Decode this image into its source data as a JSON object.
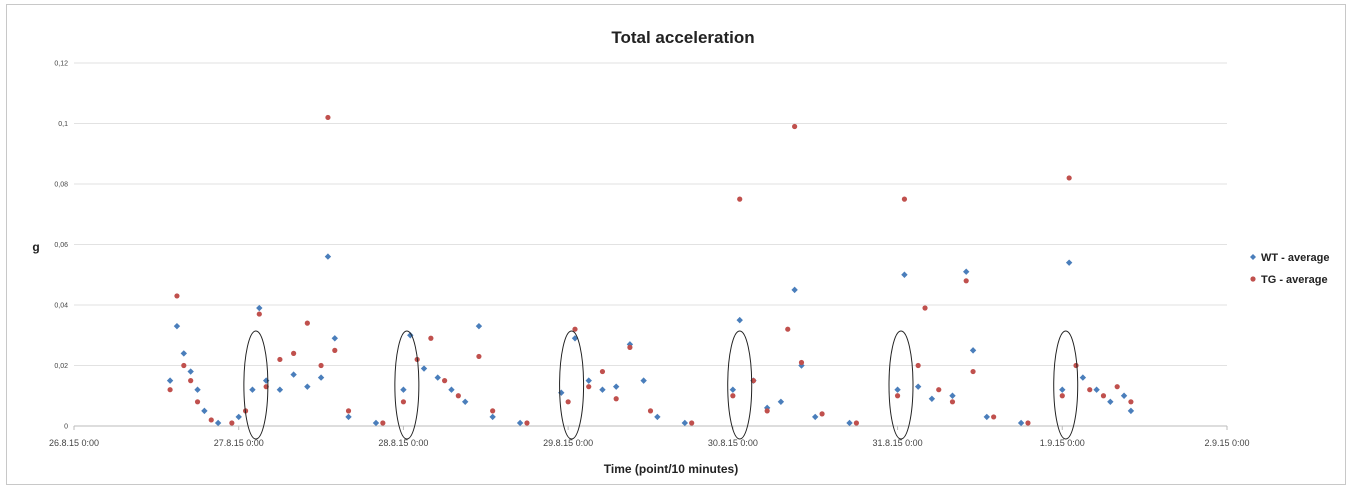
{
  "chart_data": {
    "type": "scatter",
    "title": "Total acceleration",
    "xlabel": "Time (point/10 minutes)",
    "ylabel": "g",
    "ylim": [
      0,
      0.12
    ],
    "y_ticks": [
      "0",
      "0,02",
      "0,04",
      "0,06",
      "0,08",
      "0,1",
      "0,12"
    ],
    "xlim": [
      "26.8.15 0:00",
      "2.9.15 0:00"
    ],
    "x_ticks": [
      "26.8.15 0:00",
      "27.8.15 0:00",
      "28.8.15 0:00",
      "29.8.15 0:00",
      "30.8.15 0:00",
      "31.8.15 0:00",
      "1.9.15 0:00",
      "2.9.15 0:00"
    ],
    "grid": "horizontal",
    "legend_position": "right",
    "series": [
      {
        "name": "WT - average",
        "color": "#4a7ebb",
        "marker": "diamond",
        "points": [
          [
            "26.8.15 14:00",
            0.015
          ],
          [
            "26.8.15 15:00",
            0.033
          ],
          [
            "26.8.15 16:00",
            0.024
          ],
          [
            "26.8.15 17:00",
            0.018
          ],
          [
            "26.8.15 18:00",
            0.012
          ],
          [
            "26.8.15 19:00",
            0.005
          ],
          [
            "26.8.15 21:00",
            0.001
          ],
          [
            "27.8.15 0:00",
            0.003
          ],
          [
            "27.8.15 2:00",
            0.012
          ],
          [
            "27.8.15 3:00",
            0.039
          ],
          [
            "27.8.15 4:00",
            0.015
          ],
          [
            "27.8.15 6:00",
            0.012
          ],
          [
            "27.8.15 8:00",
            0.017
          ],
          [
            "27.8.15 10:00",
            0.013
          ],
          [
            "27.8.15 12:00",
            0.016
          ],
          [
            "27.8.15 13:00",
            0.056
          ],
          [
            "27.8.15 14:00",
            0.029
          ],
          [
            "27.8.15 16:00",
            0.003
          ],
          [
            "27.8.15 20:00",
            0.001
          ],
          [
            "28.8.15 0:00",
            0.012
          ],
          [
            "28.8.15 1:00",
            0.03
          ],
          [
            "28.8.15 3:00",
            0.019
          ],
          [
            "28.8.15 5:00",
            0.016
          ],
          [
            "28.8.15 7:00",
            0.012
          ],
          [
            "28.8.15 9:00",
            0.008
          ],
          [
            "28.8.15 11:00",
            0.033
          ],
          [
            "28.8.15 13:00",
            0.003
          ],
          [
            "28.8.15 17:00",
            0.001
          ],
          [
            "28.8.15 23:00",
            0.011
          ],
          [
            "29.8.15 1:00",
            0.029
          ],
          [
            "29.8.15 3:00",
            0.015
          ],
          [
            "29.8.15 5:00",
            0.012
          ],
          [
            "29.8.15 7:00",
            0.013
          ],
          [
            "29.8.15 9:00",
            0.027
          ],
          [
            "29.8.15 11:00",
            0.015
          ],
          [
            "29.8.15 13:00",
            0.003
          ],
          [
            "29.8.15 17:00",
            0.001
          ],
          [
            "30.8.15 0:00",
            0.012
          ],
          [
            "30.8.15 1:00",
            0.035
          ],
          [
            "30.8.15 3:00",
            0.015
          ],
          [
            "30.8.15 5:00",
            0.006
          ],
          [
            "30.8.15 7:00",
            0.008
          ],
          [
            "30.8.15 9:00",
            0.045
          ],
          [
            "30.8.15 10:00",
            0.02
          ],
          [
            "30.8.15 12:00",
            0.003
          ],
          [
            "30.8.15 17:00",
            0.001
          ],
          [
            "31.8.15 0:00",
            0.012
          ],
          [
            "31.8.15 1:00",
            0.05
          ],
          [
            "31.8.15 3:00",
            0.013
          ],
          [
            "31.8.15 5:00",
            0.009
          ],
          [
            "31.8.15 8:00",
            0.01
          ],
          [
            "31.8.15 10:00",
            0.051
          ],
          [
            "31.8.15 11:00",
            0.025
          ],
          [
            "31.8.15 13:00",
            0.003
          ],
          [
            "31.8.15 18:00",
            0.001
          ],
          [
            "1.9.15 0:00",
            0.012
          ],
          [
            "1.9.15 1:00",
            0.054
          ],
          [
            "1.9.15 3:00",
            0.016
          ],
          [
            "1.9.15 5:00",
            0.012
          ],
          [
            "1.9.15 7:00",
            0.008
          ],
          [
            "1.9.15 9:00",
            0.01
          ],
          [
            "1.9.15 10:00",
            0.005
          ]
        ]
      },
      {
        "name": "TG - average",
        "color": "#c0504d",
        "marker": "circle",
        "points": [
          [
            "26.8.15 14:00",
            0.012
          ],
          [
            "26.8.15 15:00",
            0.043
          ],
          [
            "26.8.15 16:00",
            0.02
          ],
          [
            "26.8.15 17:00",
            0.015
          ],
          [
            "26.8.15 18:00",
            0.008
          ],
          [
            "26.8.15 20:00",
            0.002
          ],
          [
            "26.8.15 23:00",
            0.001
          ],
          [
            "27.8.15 1:00",
            0.005
          ],
          [
            "27.8.15 3:00",
            0.037
          ],
          [
            "27.8.15 4:00",
            0.013
          ],
          [
            "27.8.15 6:00",
            0.022
          ],
          [
            "27.8.15 8:00",
            0.024
          ],
          [
            "27.8.15 10:00",
            0.034
          ],
          [
            "27.8.15 12:00",
            0.02
          ],
          [
            "27.8.15 13:00",
            0.102
          ],
          [
            "27.8.15 14:00",
            0.025
          ],
          [
            "27.8.15 16:00",
            0.005
          ],
          [
            "27.8.15 21:00",
            0.001
          ],
          [
            "28.8.15 0:00",
            0.008
          ],
          [
            "28.8.15 2:00",
            0.022
          ],
          [
            "28.8.15 4:00",
            0.029
          ],
          [
            "28.8.15 6:00",
            0.015
          ],
          [
            "28.8.15 8:00",
            0.01
          ],
          [
            "28.8.15 11:00",
            0.023
          ],
          [
            "28.8.15 13:00",
            0.005
          ],
          [
            "28.8.15 18:00",
            0.001
          ],
          [
            "29.8.15 0:00",
            0.008
          ],
          [
            "29.8.15 1:00",
            0.032
          ],
          [
            "29.8.15 3:00",
            0.013
          ],
          [
            "29.8.15 5:00",
            0.018
          ],
          [
            "29.8.15 7:00",
            0.009
          ],
          [
            "29.8.15 9:00",
            0.026
          ],
          [
            "29.8.15 12:00",
            0.005
          ],
          [
            "29.8.15 18:00",
            0.001
          ],
          [
            "30.8.15 0:00",
            0.01
          ],
          [
            "30.8.15 1:00",
            0.075
          ],
          [
            "30.8.15 3:00",
            0.015
          ],
          [
            "30.8.15 5:00",
            0.005
          ],
          [
            "30.8.15 8:00",
            0.032
          ],
          [
            "30.8.15 9:00",
            0.099
          ],
          [
            "30.8.15 10:00",
            0.021
          ],
          [
            "30.8.15 13:00",
            0.004
          ],
          [
            "30.8.15 18:00",
            0.001
          ],
          [
            "31.8.15 0:00",
            0.01
          ],
          [
            "31.8.15 1:00",
            0.075
          ],
          [
            "31.8.15 3:00",
            0.02
          ],
          [
            "31.8.15 4:00",
            0.039
          ],
          [
            "31.8.15 6:00",
            0.012
          ],
          [
            "31.8.15 8:00",
            0.008
          ],
          [
            "31.8.15 10:00",
            0.048
          ],
          [
            "31.8.15 11:00",
            0.018
          ],
          [
            "31.8.15 14:00",
            0.003
          ],
          [
            "31.8.15 19:00",
            0.001
          ],
          [
            "1.9.15 0:00",
            0.01
          ],
          [
            "1.9.15 1:00",
            0.082
          ],
          [
            "1.9.15 2:00",
            0.02
          ],
          [
            "1.9.15 4:00",
            0.012
          ],
          [
            "1.9.15 6:00",
            0.01
          ],
          [
            "1.9.15 8:00",
            0.013
          ],
          [
            "1.9.15 10:00",
            0.008
          ]
        ]
      }
    ]
  }
}
